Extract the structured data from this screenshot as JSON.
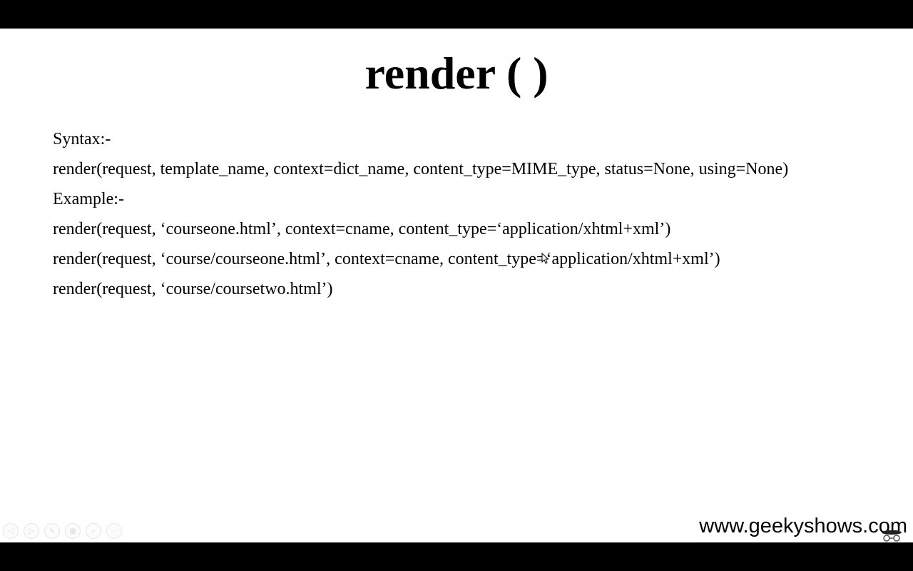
{
  "slide": {
    "title": "render ( )",
    "lines": [
      "Syntax:-",
      "render(request, template_name, context=dict_name, content_type=MIME_type, status=None, using=None)",
      "Example:-",
      "render(request, ‘courseone.html’, context=cname, content_type=‘application/xhtml+xml’)",
      "render(request, ‘course/courseone.html’, context=cname, content_type=‘application/xhtml+xml’)",
      "render(request, ‘course/coursetwo.html’)"
    ],
    "watermark": "www.geekyshows.com"
  },
  "controls": {
    "icons": [
      "previous-slide-icon",
      "next-slide-icon",
      "pen-icon",
      "slide-sorter-icon",
      "zoom-icon",
      "more-options-icon"
    ]
  },
  "colors": {
    "background": "#ffffff",
    "letterbox": "#000000",
    "text": "#000000"
  }
}
